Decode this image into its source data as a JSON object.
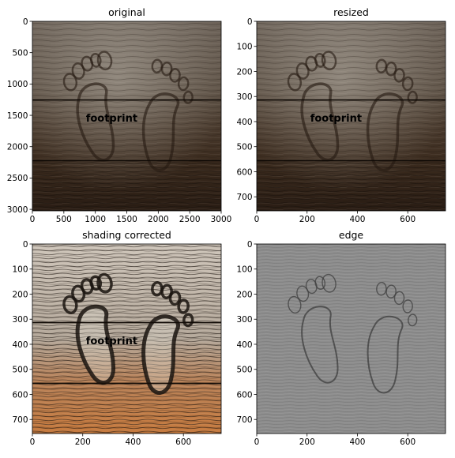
{
  "figure": {
    "panels": [
      {
        "key": "original",
        "title": "original",
        "variant": "wood",
        "x_ticks": [
          "0",
          "500",
          "1000",
          "1500",
          "2000",
          "2500",
          "3000"
        ],
        "x_tick_values": [
          0,
          500,
          1000,
          1500,
          2000,
          2500,
          3000
        ],
        "x_range": [
          0,
          3000
        ],
        "y_ticks": [
          "0",
          "500",
          "1000",
          "1500",
          "2000",
          "2500",
          "3000"
        ],
        "y_tick_values": [
          0,
          500,
          1000,
          1500,
          2000,
          2500,
          3000
        ],
        "y_range": [
          0,
          3024
        ],
        "watermark": "footprint"
      },
      {
        "key": "resized",
        "title": "resized",
        "variant": "wood",
        "x_ticks": [
          "0",
          "200",
          "400",
          "600"
        ],
        "x_tick_values": [
          0,
          200,
          400,
          600
        ],
        "x_range": [
          0,
          750
        ],
        "y_ticks": [
          "0",
          "100",
          "200",
          "300",
          "400",
          "500",
          "600",
          "700"
        ],
        "y_tick_values": [
          0,
          100,
          200,
          300,
          400,
          500,
          600,
          700
        ],
        "y_range": [
          0,
          756
        ],
        "watermark": "footprint"
      },
      {
        "key": "shading",
        "title": "shading corrected",
        "variant": "shading",
        "x_ticks": [
          "0",
          "200",
          "400",
          "600"
        ],
        "x_tick_values": [
          0,
          200,
          400,
          600
        ],
        "x_range": [
          0,
          750
        ],
        "y_ticks": [
          "0",
          "100",
          "200",
          "300",
          "400",
          "500",
          "600",
          "700"
        ],
        "y_tick_values": [
          0,
          100,
          200,
          300,
          400,
          500,
          600,
          700
        ],
        "y_range": [
          0,
          756
        ],
        "watermark": "footprint"
      },
      {
        "key": "edge",
        "title": "edge",
        "variant": "edge",
        "x_ticks": [
          "0",
          "200",
          "400",
          "600"
        ],
        "x_tick_values": [
          0,
          200,
          400,
          600
        ],
        "x_range": [
          0,
          750
        ],
        "y_ticks": [
          "0",
          "100",
          "200",
          "300",
          "400",
          "500",
          "600",
          "700"
        ],
        "y_tick_values": [
          0,
          100,
          200,
          300,
          400,
          500,
          600,
          700
        ],
        "y_range": [
          0,
          756
        ],
        "watermark": ""
      }
    ],
    "colors": {
      "wood_dark": "#2a1d14",
      "wood_mid": "#5d4a39",
      "wood_light": "#8f8374",
      "shading_light": "#d8d0c6",
      "shading_orange": "#c67a3e",
      "edge_gray": "#8c8c8c",
      "watermark": "#b8741a"
    }
  }
}
